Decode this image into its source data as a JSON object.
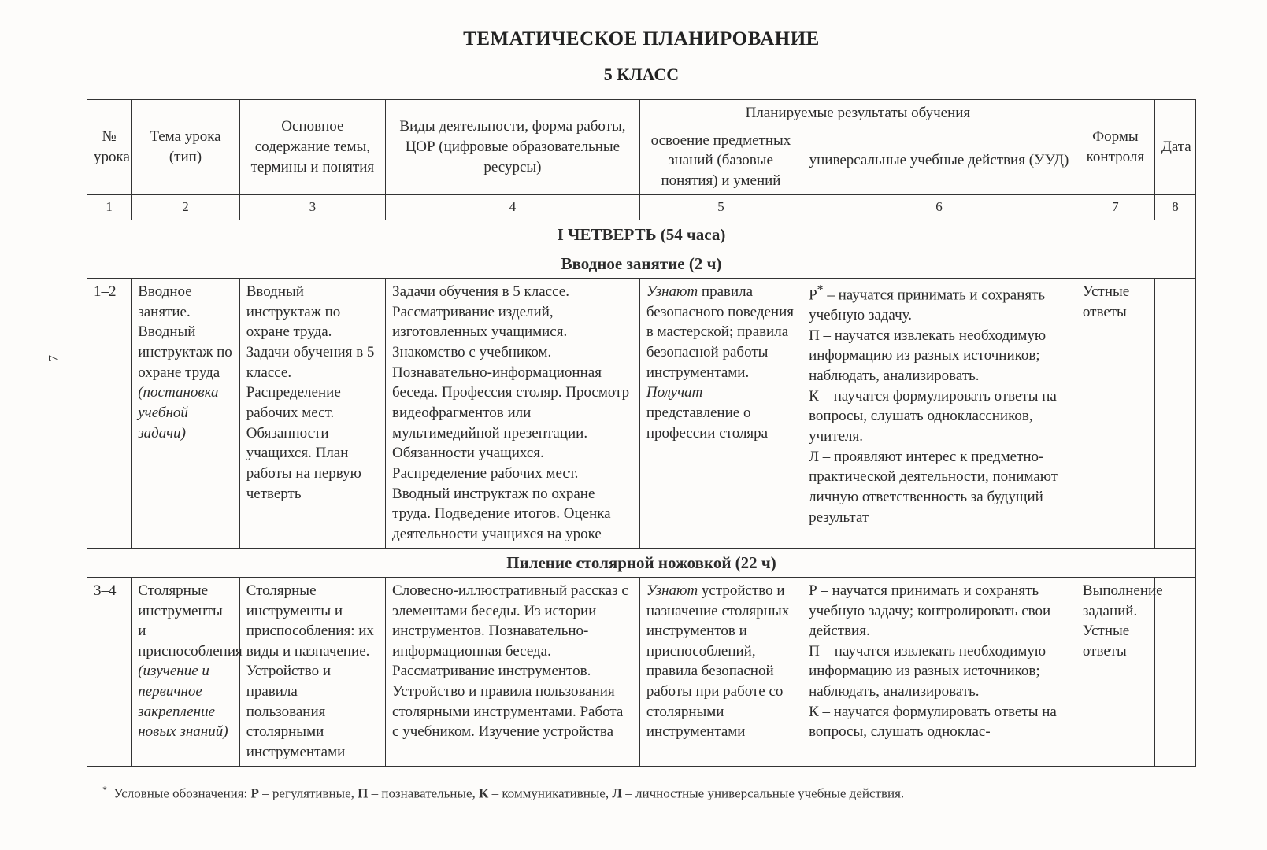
{
  "title": "ТЕМАТИЧЕСКОЕ ПЛАНИРОВАНИЕ",
  "subtitle": "5 КЛАСС",
  "side_page_number": "7",
  "headers": {
    "col1": "№ урока",
    "col2": "Тема урока (тип)",
    "col3": "Основное содержание темы, термины и понятия",
    "col4": "Виды деятельности, форма работы, ЦОР (цифровые образовательные ресурсы)",
    "planned_results": "Планируемые результаты обучения",
    "col5": "освоение предметных знаний (базовые понятия) и умений",
    "col6": "универсальные учебные действия (УУД)",
    "col7": "Формы контроля",
    "col8": "Дата"
  },
  "col_numbers": [
    "1",
    "2",
    "3",
    "4",
    "5",
    "6",
    "7",
    "8"
  ],
  "sections": {
    "quarter": "I ЧЕТВЕРТЬ (54 часа)",
    "intro": "Вводное занятие (2 ч)",
    "sawing": "Пиление столярной ножовкой (22 ч)"
  },
  "rows": [
    {
      "num": "1–2",
      "topic_plain": "Вводное занятие. Вводный инструктаж по охране труда ",
      "topic_italic": "(постановка учебной задачи)",
      "content": "Вводный инструктаж по охране труда. Задачи обучения в 5 классе. Распределение рабочих мест. Обязанности учащихся. План работы на первую четверть",
      "activities": "Задачи обучения в 5 классе. Рассматривание изделий, изготовленных учащимися. Знакомство с учебником. Познавательно-информационная беседа. Профессия столяр. Просмотр видеофрагментов или мультимедийной презентации. Обязанности учащихся. Распределение рабочих мест. Вводный инструктаж по охране труда. Подведение итогов. Оценка деятельности учащихся на уроке",
      "results_html": "<span class=\"italic\">Узнают</span> правила безопасного поведения в мастерской; правила безопасной работы инструментами.<br><span class=\"italic\">Получат</span> представление о профессии столяра",
      "uud_html": "Р<sup>*</sup> – научатся принимать и сохранять учебную задачу.<br>П – научатся извлекать необходимую информацию из разных источников; наблюдать, анализировать.<br>К – научатся формулировать ответы на вопросы, слушать одноклассников, учителя.<br>Л – проявляют интерес к предметно-практической деятельности, понимают личную ответственность за будущий результат",
      "control": "Устные ответы",
      "date": ""
    },
    {
      "num": "3–4",
      "topic_plain": "Столярные инструменты и приспособления ",
      "topic_italic": "(изучение и первичное закрепление новых знаний)",
      "content": "Столярные инструменты и приспособления: их виды и назначение. Устройство и правила пользования столярными инструментами",
      "activities": "Словесно-иллюстративный рассказ с элементами беседы. Из истории инструментов. Познавательно-информационная беседа. Рассматривание инструментов. Устройство и правила пользования столярными инструментами. Работа с учебником. Изучение устройства",
      "results_html": "<span class=\"italic\">Узнают</span> устройство и назначение столярных инструментов и приспособлений, правила безопасной работы при работе со столярными инструментами",
      "uud_html": "Р – научатся принимать и сохранять учебную задачу; контролировать свои действия.<br>П – научатся извлекать необходимую информацию из разных источников; наблюдать, анализировать.<br>К – научатся формулировать ответы на вопросы, слушать одноклас-",
      "control": "Выполнение заданий. Устные ответы",
      "date": ""
    }
  ],
  "footnote": {
    "star": "*",
    "text_html": "Условные обозначения: <b>Р</b> – регулятивные, <b>П</b> – познавательные, <b>К</b> – коммуникативные, <b>Л</b> – личностные универсальные учебные действия."
  }
}
